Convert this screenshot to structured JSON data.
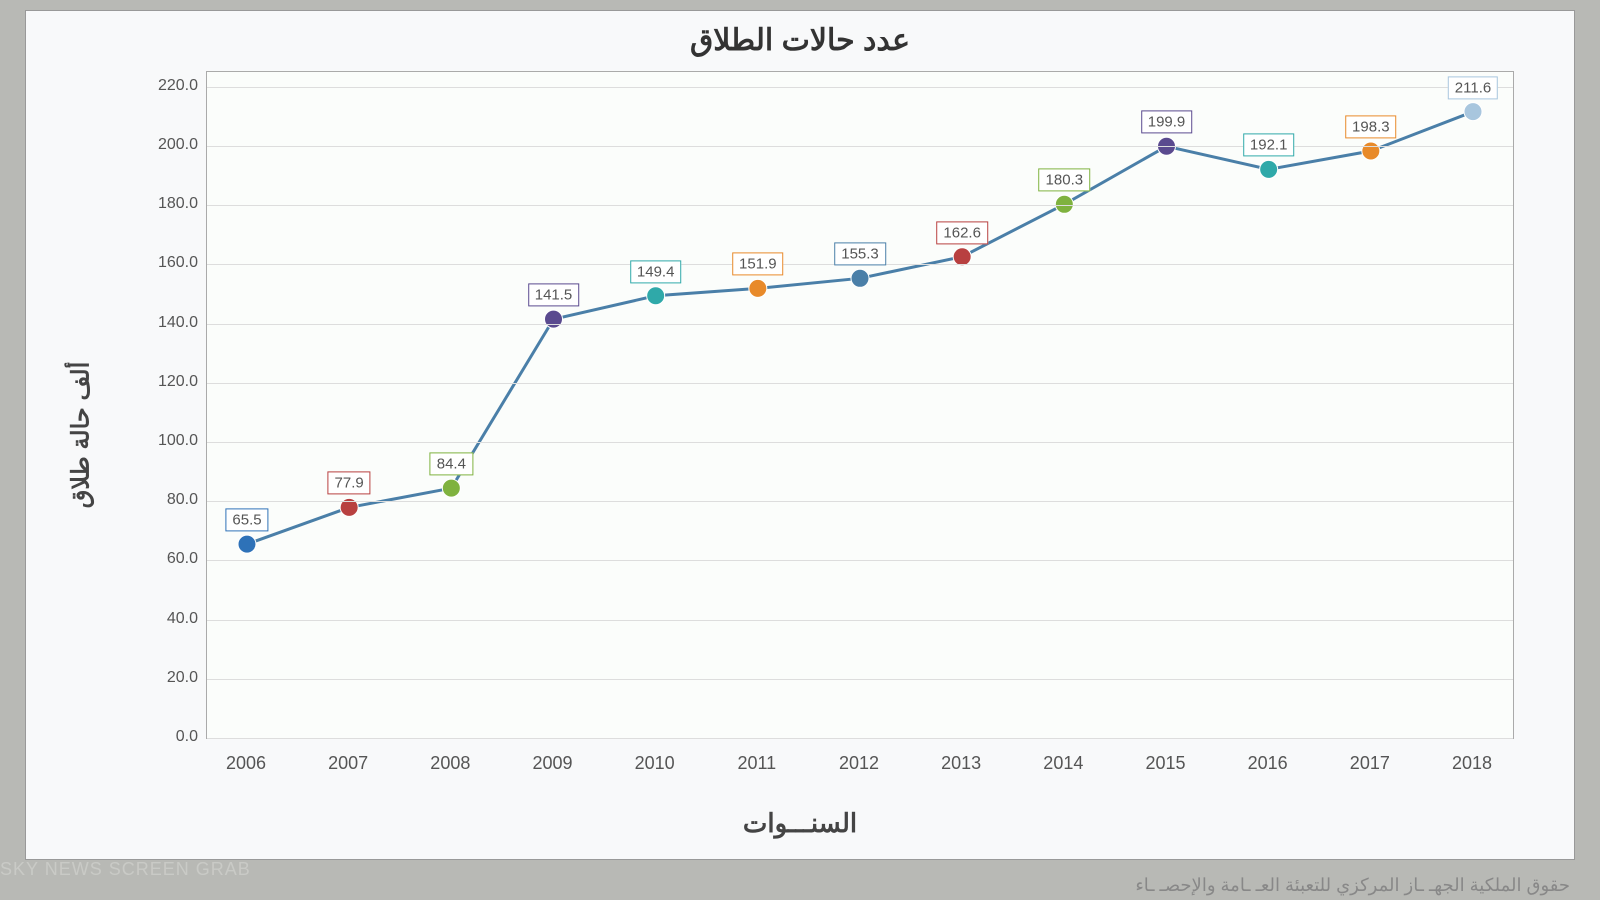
{
  "chart": {
    "type": "line",
    "title": "عدد حالات الطلاق",
    "title_fontsize": 30,
    "xlabel": "السنـــوات",
    "ylabel": "ألف حالة طلاق",
    "label_fontsize": 24,
    "background_color": "#f8f9fa",
    "plot_background_color": "#fbfdfb",
    "grid_color": "#dddddd",
    "line_color": "#4a7fa8",
    "line_width": 3,
    "marker_size": 9,
    "ylim": [
      0,
      225
    ],
    "ytick_step": 20,
    "yticks": [
      "0.0",
      "20.0",
      "40.0",
      "60.0",
      "80.0",
      "100.0",
      "120.0",
      "140.0",
      "160.0",
      "180.0",
      "200.0",
      "220.0"
    ],
    "categories": [
      "2006",
      "2007",
      "2008",
      "2009",
      "2010",
      "2011",
      "2012",
      "2013",
      "2014",
      "2015",
      "2016",
      "2017",
      "2018"
    ],
    "values": [
      65.5,
      77.9,
      84.4,
      141.5,
      149.4,
      151.9,
      155.3,
      162.6,
      180.3,
      199.9,
      192.1,
      198.3,
      211.6
    ],
    "value_labels": [
      "65.5",
      "77.9",
      "84.4",
      "141.5",
      "149.4",
      "151.9",
      "155.3",
      "162.6",
      "180.3",
      "199.9",
      "192.1",
      "198.3",
      "211.6"
    ],
    "marker_colors": [
      "#2e72b8",
      "#b84040",
      "#7fb23f",
      "#5a4a8f",
      "#2fa9a9",
      "#e88a2a",
      "#4a7fa8",
      "#b84040",
      "#7fb23f",
      "#5a4a8f",
      "#2fa9a9",
      "#e88a2a",
      "#a8c6de"
    ],
    "label_box_border_colors": [
      "#2e72b8",
      "#b84040",
      "#7fb23f",
      "#5a4a8f",
      "#2fa9a9",
      "#e88a2a",
      "#4a7fa8",
      "#b84040",
      "#7fb23f",
      "#5a4a8f",
      "#2fa9a9",
      "#e88a2a",
      "#a8c6de"
    ]
  },
  "watermark": "SKY NEWS SCREEN GRAB",
  "footer": "حقوق الملكية الجهـ ـاز المركزي للتعبئة العـ ـامة والإحصـ ـاء"
}
